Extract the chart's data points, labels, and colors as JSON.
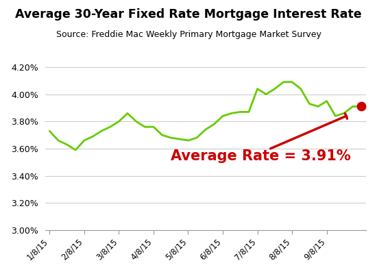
{
  "title": "Average 30-Year Fixed Rate Mortgage Interest Rate",
  "subtitle": "Source: Freddie Mac Weekly Primary Mortgage Market Survey",
  "annotation_text": "Average Rate = 3.91%",
  "line_color": "#66cc00",
  "line_width": 2.0,
  "dot_color": "#cc0000",
  "arrow_color": "#cc0000",
  "annotation_color": "#cc0000",
  "background_color": "#ffffff",
  "ylim": [
    3.0,
    4.25
  ],
  "yticks": [
    3.0,
    3.2,
    3.4,
    3.6,
    3.8,
    4.0,
    4.2
  ],
  "ytick_labels": [
    "3.00%",
    "3.20%",
    "3.40%",
    "3.60%",
    "3.80%",
    "4.00%",
    "4.20%"
  ],
  "xtick_labels": [
    "1/8/15",
    "2/8/15",
    "3/8/15",
    "4/8/15",
    "5/8/15",
    "6/8/15",
    "7/8/15",
    "8/8/15",
    "9/8/15"
  ],
  "x_values": [
    0,
    1,
    2,
    3,
    4,
    5,
    6,
    7,
    8,
    9,
    10,
    11,
    12,
    13,
    14,
    15,
    16,
    17,
    18,
    19,
    20,
    21,
    22,
    23,
    24,
    25,
    26,
    27,
    28,
    29,
    30,
    31,
    32,
    33,
    34,
    35,
    36
  ],
  "y_values": [
    3.73,
    3.66,
    3.63,
    3.59,
    3.66,
    3.69,
    3.73,
    3.76,
    3.8,
    3.86,
    3.8,
    3.76,
    3.76,
    3.7,
    3.68,
    3.67,
    3.66,
    3.68,
    3.74,
    3.78,
    3.84,
    3.86,
    3.87,
    3.87,
    4.04,
    4.0,
    4.04,
    4.09,
    4.09,
    4.04,
    3.93,
    3.91,
    3.95,
    3.84,
    3.86,
    3.91,
    3.91
  ],
  "xtick_positions": [
    0,
    4,
    8,
    12,
    16,
    20,
    24,
    28,
    32
  ],
  "grid_color": "#cccccc",
  "title_fontsize": 12.5,
  "subtitle_fontsize": 9.0,
  "annotation_fontsize": 15
}
